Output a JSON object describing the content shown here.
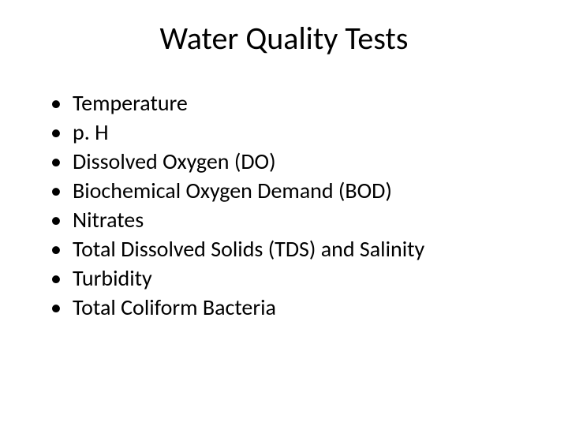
{
  "title": {
    "text": "Water Quality Tests",
    "fontsize": 40,
    "color": "#000000"
  },
  "bullets": {
    "fontsize": 28,
    "color": "#000000",
    "items": [
      "Temperature",
      "p. H",
      "Dissolved Oxygen (DO)",
      "Biochemical Oxygen Demand (BOD)",
      "Nitrates",
      "Total Dissolved Solids (TDS) and Salinity",
      "Turbidity",
      "Total Coliform Bacteria"
    ]
  },
  "background_color": "#ffffff"
}
